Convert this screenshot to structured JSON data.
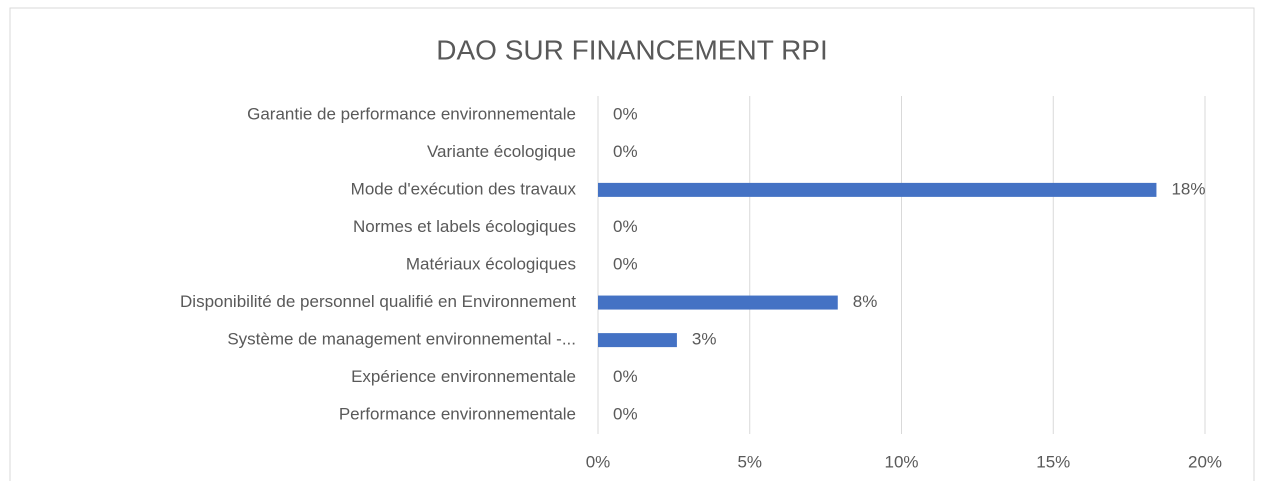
{
  "chart_data": {
    "type": "bar",
    "orientation": "horizontal",
    "title": "DAO SUR FINANCEMENT RPI",
    "categories": [
      "Garantie de performance environnementale",
      "Variante écologique",
      "Mode d'exécution des travaux",
      "Normes et labels écologiques",
      "Matériaux écologiques",
      "Disponibilité de personnel qualifié en Environnement",
      "Système de management environnemental -...",
      "Expérience environnementale",
      "Performance environnementale"
    ],
    "values": [
      0,
      0,
      18.4,
      0,
      0,
      7.9,
      2.6,
      0,
      0
    ],
    "value_labels": [
      "0%",
      "0%",
      "18%",
      "0%",
      "0%",
      "8%",
      "3%",
      "0%",
      "0%"
    ],
    "color": "#4472c4",
    "xlim": [
      0,
      20
    ],
    "xticks": [
      {
        "value": 0,
        "label": "0%"
      },
      {
        "value": 5,
        "label": "5%"
      },
      {
        "value": 10,
        "label": "10%"
      },
      {
        "value": 15,
        "label": "15%"
      },
      {
        "value": 20,
        "label": "20%"
      }
    ],
    "grid": true
  }
}
